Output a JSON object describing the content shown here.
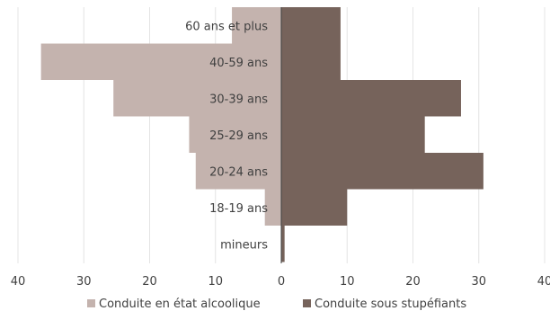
{
  "chart_data": {
    "type": "bar",
    "orientation": "horizontal-diverging",
    "categories": [
      "60 ans et plus",
      "40-59 ans",
      "30-39 ans",
      "25-29 ans",
      "20-24 ans",
      "18-19 ans",
      "mineurs"
    ],
    "series": [
      {
        "name": "Conduite en état alcoolique",
        "color": "#c4b3ae",
        "side": "left",
        "values": [
          7.5,
          36.5,
          25.5,
          14,
          13,
          2.5,
          0
        ]
      },
      {
        "name": "Conduite sous stupéfiants",
        "color": "#76635b",
        "side": "right",
        "values": [
          9,
          9,
          27.3,
          21.8,
          30.7,
          10,
          0.5
        ]
      }
    ],
    "x_ticks": [
      "40",
      "30",
      "20",
      "10",
      "0",
      "10",
      "20",
      "30",
      "40"
    ],
    "xlim": [
      -40,
      40
    ],
    "grid": true,
    "legend_position": "bottom"
  }
}
